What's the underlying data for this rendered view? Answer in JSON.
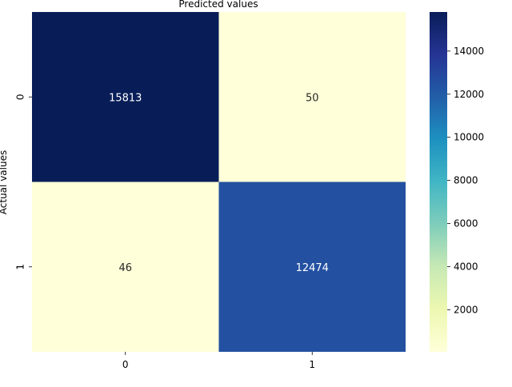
{
  "chart_data": {
    "type": "heatmap",
    "title": "",
    "xlabel": "Predicted values",
    "ylabel": "Actual values",
    "x_categories": [
      "0",
      "1"
    ],
    "y_categories": [
      "0",
      "1"
    ],
    "values": [
      [
        15813,
        50
      ],
      [
        46,
        12474
      ]
    ],
    "colorbar": {
      "colormap": "YlGnBu",
      "min": 46,
      "max": 15813,
      "ticks": [
        2000,
        4000,
        6000,
        8000,
        10000,
        12000,
        14000
      ],
      "tick_labels": [
        "2000",
        "4000",
        "6000",
        "8000",
        "10000",
        "12000",
        "14000"
      ]
    },
    "colors": {
      "cell_00": "#081d58",
      "cell_01": "#ffffd9",
      "cell_10": "#ffffd9",
      "cell_11": "#2350a1"
    }
  }
}
